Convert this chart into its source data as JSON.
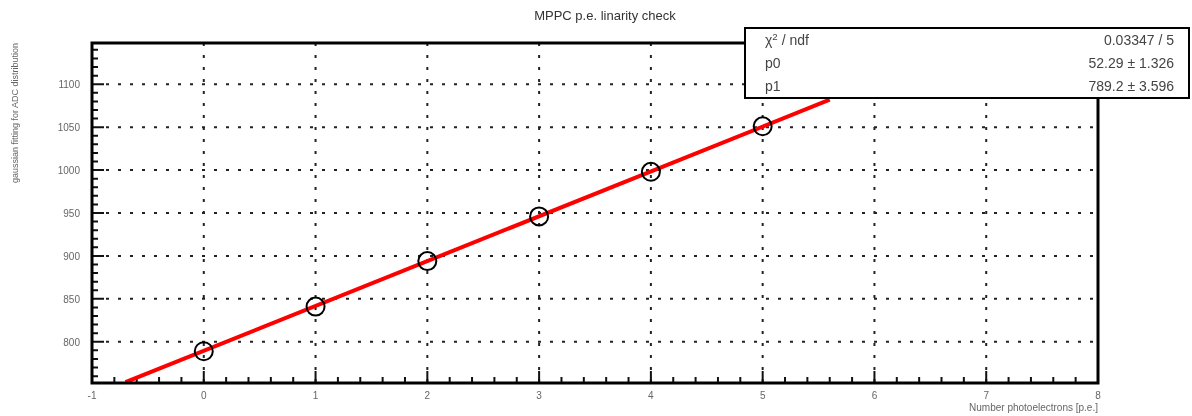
{
  "chart_data": {
    "type": "scatter",
    "title": "MPPC p.e. linarity check",
    "xlabel": "Number photoelectrons [p.e.]",
    "ylabel": "gaussian fitting for ADC distribution",
    "xlim": [
      -1,
      8
    ],
    "xticks": [
      -1,
      0,
      1,
      2,
      3,
      4,
      5,
      6,
      7,
      8
    ],
    "ylim": [
      752,
      1148
    ],
    "yticks": [
      800,
      850,
      900,
      950,
      1000,
      1050,
      1100
    ],
    "grid": true,
    "series": [
      {
        "type": "line",
        "color": "#ff0000",
        "x": [
          -0.7,
          5.6
        ],
        "values": [
          753,
          1082
        ]
      },
      {
        "marker": "circle",
        "color": "#000000",
        "x": [
          0,
          1,
          2,
          3,
          4,
          5
        ],
        "values": [
          789,
          841,
          894,
          946,
          998,
          1051
        ]
      }
    ],
    "annotations": [
      "χ$^{2}$ / ndf",
      "0.03347 / 5",
      "p0",
      "52.29 ± 1.326",
      "p1",
      "789.2 ± 3.596"
    ]
  }
}
